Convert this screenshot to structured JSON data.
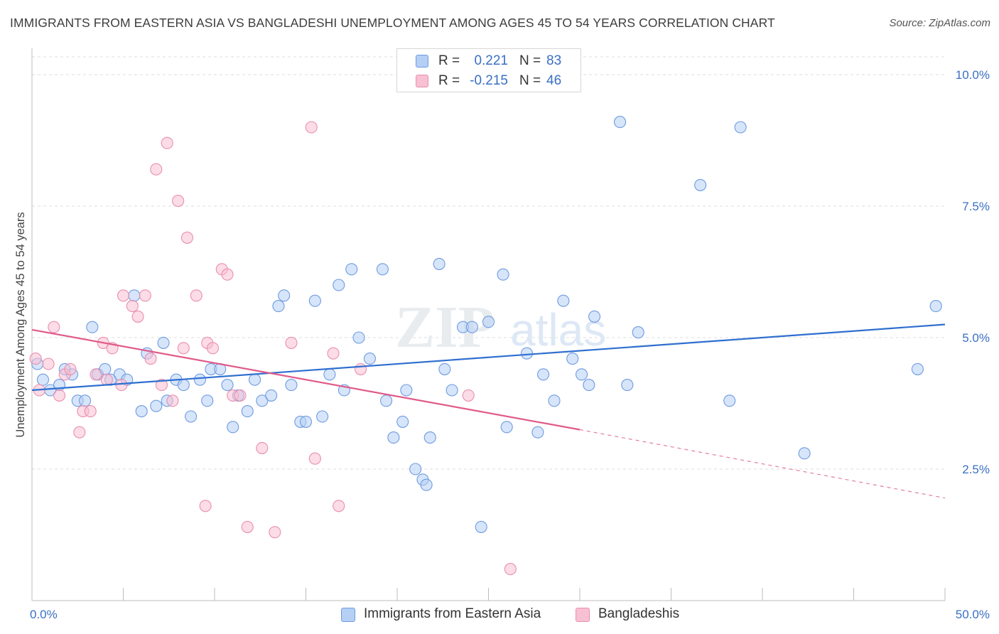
{
  "title": "IMMIGRANTS FROM EASTERN ASIA VS BANGLADESHI UNEMPLOYMENT AMONG AGES 45 TO 54 YEARS CORRELATION CHART",
  "source": "Source: ZipAtlas.com",
  "watermark": {
    "zip": "ZIP",
    "atlas": "atlas"
  },
  "legend_top": {
    "rows": [
      {
        "r_label": "R =",
        "r_value": "0.221",
        "n_label": "N =",
        "n_value": "83"
      },
      {
        "r_label": "R =",
        "r_value": "-0.215",
        "n_label": "N =",
        "n_value": "46"
      }
    ]
  },
  "legend_bottom": {
    "items": [
      {
        "label": "Immigrants from Eastern Asia"
      },
      {
        "label": "Bangladeshis"
      }
    ]
  },
  "chart_data": {
    "type": "scatter",
    "ylabel": "Unemployment Among Ages 45 to 54 years",
    "xlim": [
      0,
      50
    ],
    "ylim": [
      0,
      10.5
    ],
    "x_tick_labels": [
      {
        "value": 0,
        "label": "0.0%"
      },
      {
        "value": 50,
        "label": "50.0%"
      }
    ],
    "y_ticks": [
      {
        "value": 2.5,
        "label": "2.5%"
      },
      {
        "value": 5.0,
        "label": "5.0%"
      },
      {
        "value": 7.5,
        "label": "7.5%"
      },
      {
        "value": 10.0,
        "label": "10.0%"
      }
    ],
    "grid": "horizontal dashed",
    "colors": {
      "blue_fill": "#b5cff5",
      "blue_stroke": "#6f9be0",
      "blue_line": "#2f6fd0",
      "pink_fill": "#f8c0d3",
      "pink_stroke": "#e98fae",
      "pink_line": "#e05a8a",
      "tick_label": "#3a6fc4"
    },
    "series": [
      {
        "name": "Immigrants from Eastern Asia",
        "color": "blue",
        "r": 0.221,
        "n": 83,
        "trend": {
          "x": [
            0,
            50
          ],
          "y": [
            4.0,
            5.25
          ]
        },
        "points": [
          [
            0.3,
            4.5
          ],
          [
            0.6,
            4.2
          ],
          [
            1.0,
            4.0
          ],
          [
            1.5,
            4.1
          ],
          [
            1.8,
            4.4
          ],
          [
            2.2,
            4.3
          ],
          [
            2.5,
            3.8
          ],
          [
            2.9,
            3.8
          ],
          [
            3.3,
            5.2
          ],
          [
            3.6,
            4.3
          ],
          [
            4.0,
            4.4
          ],
          [
            4.3,
            4.2
          ],
          [
            4.8,
            4.3
          ],
          [
            5.2,
            4.2
          ],
          [
            5.6,
            5.8
          ],
          [
            6.0,
            3.6
          ],
          [
            6.3,
            4.7
          ],
          [
            6.8,
            3.7
          ],
          [
            7.2,
            4.9
          ],
          [
            7.4,
            3.8
          ],
          [
            7.9,
            4.2
          ],
          [
            8.3,
            4.1
          ],
          [
            8.7,
            3.5
          ],
          [
            9.2,
            4.2
          ],
          [
            9.6,
            3.8
          ],
          [
            9.8,
            4.4
          ],
          [
            10.3,
            4.4
          ],
          [
            10.7,
            4.1
          ],
          [
            11.0,
            3.3
          ],
          [
            11.3,
            3.9
          ],
          [
            11.8,
            3.6
          ],
          [
            12.2,
            4.2
          ],
          [
            12.6,
            3.8
          ],
          [
            13.1,
            3.9
          ],
          [
            13.5,
            5.6
          ],
          [
            13.8,
            5.8
          ],
          [
            14.2,
            4.1
          ],
          [
            14.7,
            3.4
          ],
          [
            15.0,
            3.4
          ],
          [
            15.5,
            5.7
          ],
          [
            15.9,
            3.5
          ],
          [
            16.3,
            4.3
          ],
          [
            16.8,
            6.0
          ],
          [
            17.1,
            4.0
          ],
          [
            17.5,
            6.3
          ],
          [
            17.9,
            5.0
          ],
          [
            18.5,
            4.6
          ],
          [
            19.2,
            6.3
          ],
          [
            19.4,
            3.8
          ],
          [
            19.8,
            3.1
          ],
          [
            20.3,
            3.4
          ],
          [
            20.5,
            4.0
          ],
          [
            21.0,
            2.5
          ],
          [
            21.4,
            2.3
          ],
          [
            21.6,
            2.2
          ],
          [
            21.8,
            3.1
          ],
          [
            22.3,
            6.4
          ],
          [
            22.6,
            4.4
          ],
          [
            23.0,
            4.0
          ],
          [
            23.6,
            5.2
          ],
          [
            24.1,
            5.2
          ],
          [
            24.6,
            1.4
          ],
          [
            25.0,
            5.3
          ],
          [
            25.8,
            6.2
          ],
          [
            26.0,
            3.3
          ],
          [
            27.1,
            4.7
          ],
          [
            27.7,
            3.2
          ],
          [
            28.0,
            4.3
          ],
          [
            28.6,
            3.8
          ],
          [
            29.1,
            5.7
          ],
          [
            29.6,
            4.6
          ],
          [
            30.1,
            4.3
          ],
          [
            30.5,
            4.1
          ],
          [
            30.8,
            5.4
          ],
          [
            32.2,
            9.1
          ],
          [
            32.6,
            4.1
          ],
          [
            33.2,
            5.1
          ],
          [
            36.6,
            7.9
          ],
          [
            38.2,
            3.8
          ],
          [
            38.8,
            9.0
          ],
          [
            42.3,
            2.8
          ],
          [
            48.5,
            4.4
          ],
          [
            49.5,
            5.6
          ]
        ]
      },
      {
        "name": "Bangladeshis",
        "color": "pink",
        "r": -0.215,
        "n": 46,
        "trend": {
          "x": [
            0,
            30
          ],
          "y": [
            5.15,
            3.25
          ]
        },
        "trend_dashed": {
          "x": [
            30,
            50
          ],
          "y": [
            3.25,
            1.95
          ]
        },
        "points": [
          [
            0.2,
            4.6
          ],
          [
            0.4,
            4.0
          ],
          [
            0.9,
            4.5
          ],
          [
            1.2,
            5.2
          ],
          [
            1.5,
            3.9
          ],
          [
            1.8,
            4.3
          ],
          [
            2.1,
            4.4
          ],
          [
            2.6,
            3.2
          ],
          [
            2.8,
            3.6
          ],
          [
            3.2,
            3.6
          ],
          [
            3.5,
            4.3
          ],
          [
            3.9,
            4.9
          ],
          [
            4.1,
            4.2
          ],
          [
            4.4,
            4.8
          ],
          [
            4.9,
            4.1
          ],
          [
            5.0,
            5.8
          ],
          [
            5.5,
            5.6
          ],
          [
            5.8,
            5.4
          ],
          [
            6.2,
            5.8
          ],
          [
            6.5,
            4.6
          ],
          [
            6.8,
            8.2
          ],
          [
            7.1,
            4.1
          ],
          [
            7.4,
            8.7
          ],
          [
            7.7,
            3.8
          ],
          [
            8.0,
            7.6
          ],
          [
            8.3,
            4.8
          ],
          [
            8.5,
            6.9
          ],
          [
            9.0,
            5.8
          ],
          [
            9.5,
            1.8
          ],
          [
            9.6,
            4.9
          ],
          [
            9.9,
            4.8
          ],
          [
            10.4,
            6.3
          ],
          [
            10.7,
            6.2
          ],
          [
            11.0,
            3.9
          ],
          [
            11.4,
            3.9
          ],
          [
            11.8,
            1.4
          ],
          [
            12.6,
            2.9
          ],
          [
            13.3,
            1.3
          ],
          [
            14.2,
            4.9
          ],
          [
            15.3,
            9.0
          ],
          [
            15.5,
            2.7
          ],
          [
            16.5,
            4.7
          ],
          [
            16.8,
            1.8
          ],
          [
            18.0,
            4.4
          ],
          [
            23.9,
            3.9
          ],
          [
            26.2,
            0.6
          ]
        ]
      }
    ]
  }
}
